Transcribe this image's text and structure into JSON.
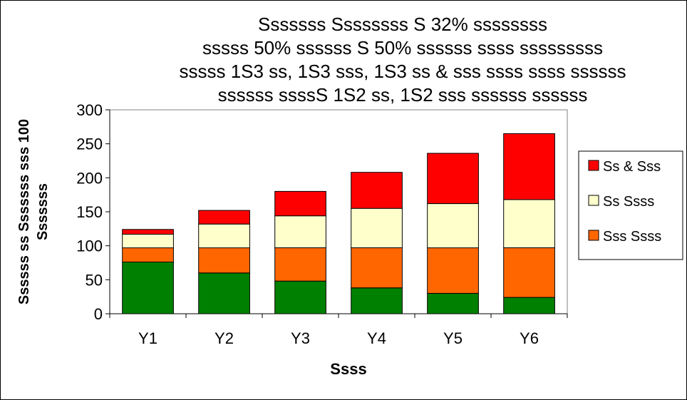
{
  "chart_data": {
    "type": "bar",
    "stacked": true,
    "title_lines": [
      "Sssssss Ssssssss S 32% ssssssss",
      "sssss 50% ssssss S 50% ssssss ssss sssssssss",
      "sssss 1S3 ss, 1S3 sss, 1S3 ss & sss ssss ssss ssssss",
      "ssssss ssssS 1S2 ss, 1S2 sss ssssss ssssss"
    ],
    "xlabel": "Ssss",
    "ylabel_lines": [
      "Ssssss ss Sssssss sss 100",
      "Sssssss"
    ],
    "categories": [
      "Y1",
      "Y2",
      "Y3",
      "Y4",
      "Y5",
      "Y6"
    ],
    "ylim": [
      0,
      300
    ],
    "yticks": [
      0,
      50,
      100,
      150,
      200,
      250,
      300
    ],
    "grid": false,
    "legend_position": "right",
    "series": [
      {
        "values": [
          76,
          60,
          48,
          38,
          30,
          24
        ],
        "color": "#008000",
        "in_legend": false
      },
      {
        "name": "Sss Ssss",
        "values": [
          21,
          37,
          49,
          59,
          67,
          73
        ],
        "color": "#ff6600",
        "in_legend": true
      },
      {
        "name": "Ss Ssss",
        "values": [
          20,
          35,
          47,
          58,
          65,
          71
        ],
        "color": "#ffffcc",
        "in_legend": true
      },
      {
        "name": "Ss & Sss",
        "values": [
          7,
          20,
          36,
          53,
          74,
          97
        ],
        "color": "#ff0000",
        "in_legend": true
      }
    ]
  }
}
